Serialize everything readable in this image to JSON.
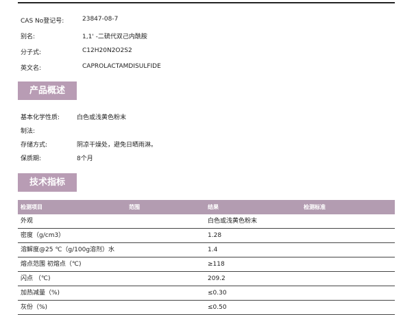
{
  "basic": [
    {
      "label": "CAS No登记号:",
      "value": "23847-08-7"
    },
    {
      "label": "别名:",
      "value": "1,1' -二硫代双己内酰胺"
    },
    {
      "label": "分子式:",
      "value": "C12H20N2O2S2"
    },
    {
      "label": "英文名:",
      "value": "CAPROLACTAMDISULFIDE"
    }
  ],
  "overview": {
    "title": "产品概述",
    "items": [
      {
        "label": "基本化学性质:",
        "value": "白色或浅黄色粉末"
      },
      {
        "label": "制法:",
        "value": ""
      },
      {
        "label": "存储方式:",
        "value": "阴凉干燥处，避免日晒雨淋。"
      },
      {
        "label": "保质期:",
        "value": "8个月"
      }
    ]
  },
  "specs": {
    "title": "技术指标",
    "headers": [
      "检测项目",
      "范围",
      "结果",
      "检测标准"
    ],
    "rows": [
      [
        "外观",
        "",
        "白色或浅黄色粉末",
        ""
      ],
      [
        "密度（g/cm3）",
        "",
        "1.28",
        ""
      ],
      [
        "溶解度@25 ℃（g/100g溶剂）水",
        "",
        "1.4",
        ""
      ],
      [
        "熔点范围 初熔点（℃)",
        "",
        "≥118",
        ""
      ],
      [
        "闪点 （℃)",
        "",
        "209.2",
        ""
      ],
      [
        "加热减量（%)",
        "",
        "≤0.30",
        ""
      ],
      [
        "灰份（%)",
        "",
        "≤0.50",
        ""
      ]
    ]
  },
  "colors": {
    "accent": "#b89cb4",
    "table_header": "#b39cb1"
  }
}
